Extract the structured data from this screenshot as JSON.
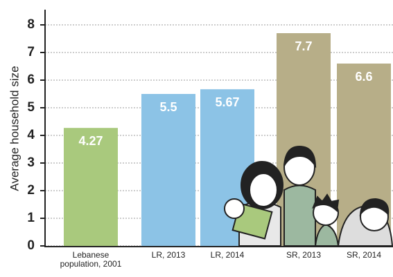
{
  "chart_data": {
    "type": "bar",
    "y_label": "Average household size",
    "categories": [
      "Lebanese population, 2001",
      "LR, 2013",
      "LR, 2014",
      "SR, 2013",
      "SR, 2014"
    ],
    "values": [
      4.27,
      5.5,
      5.67,
      7.7,
      6.6
    ],
    "colors": [
      "#a9c97d",
      "#8cc3e6",
      "#8cc3e6",
      "#b7ae88",
      "#b7ae88"
    ],
    "ylim": [
      0,
      8
    ],
    "yticks": [
      0,
      1,
      2,
      3,
      4,
      5,
      6,
      7,
      8
    ],
    "grid": true
  }
}
